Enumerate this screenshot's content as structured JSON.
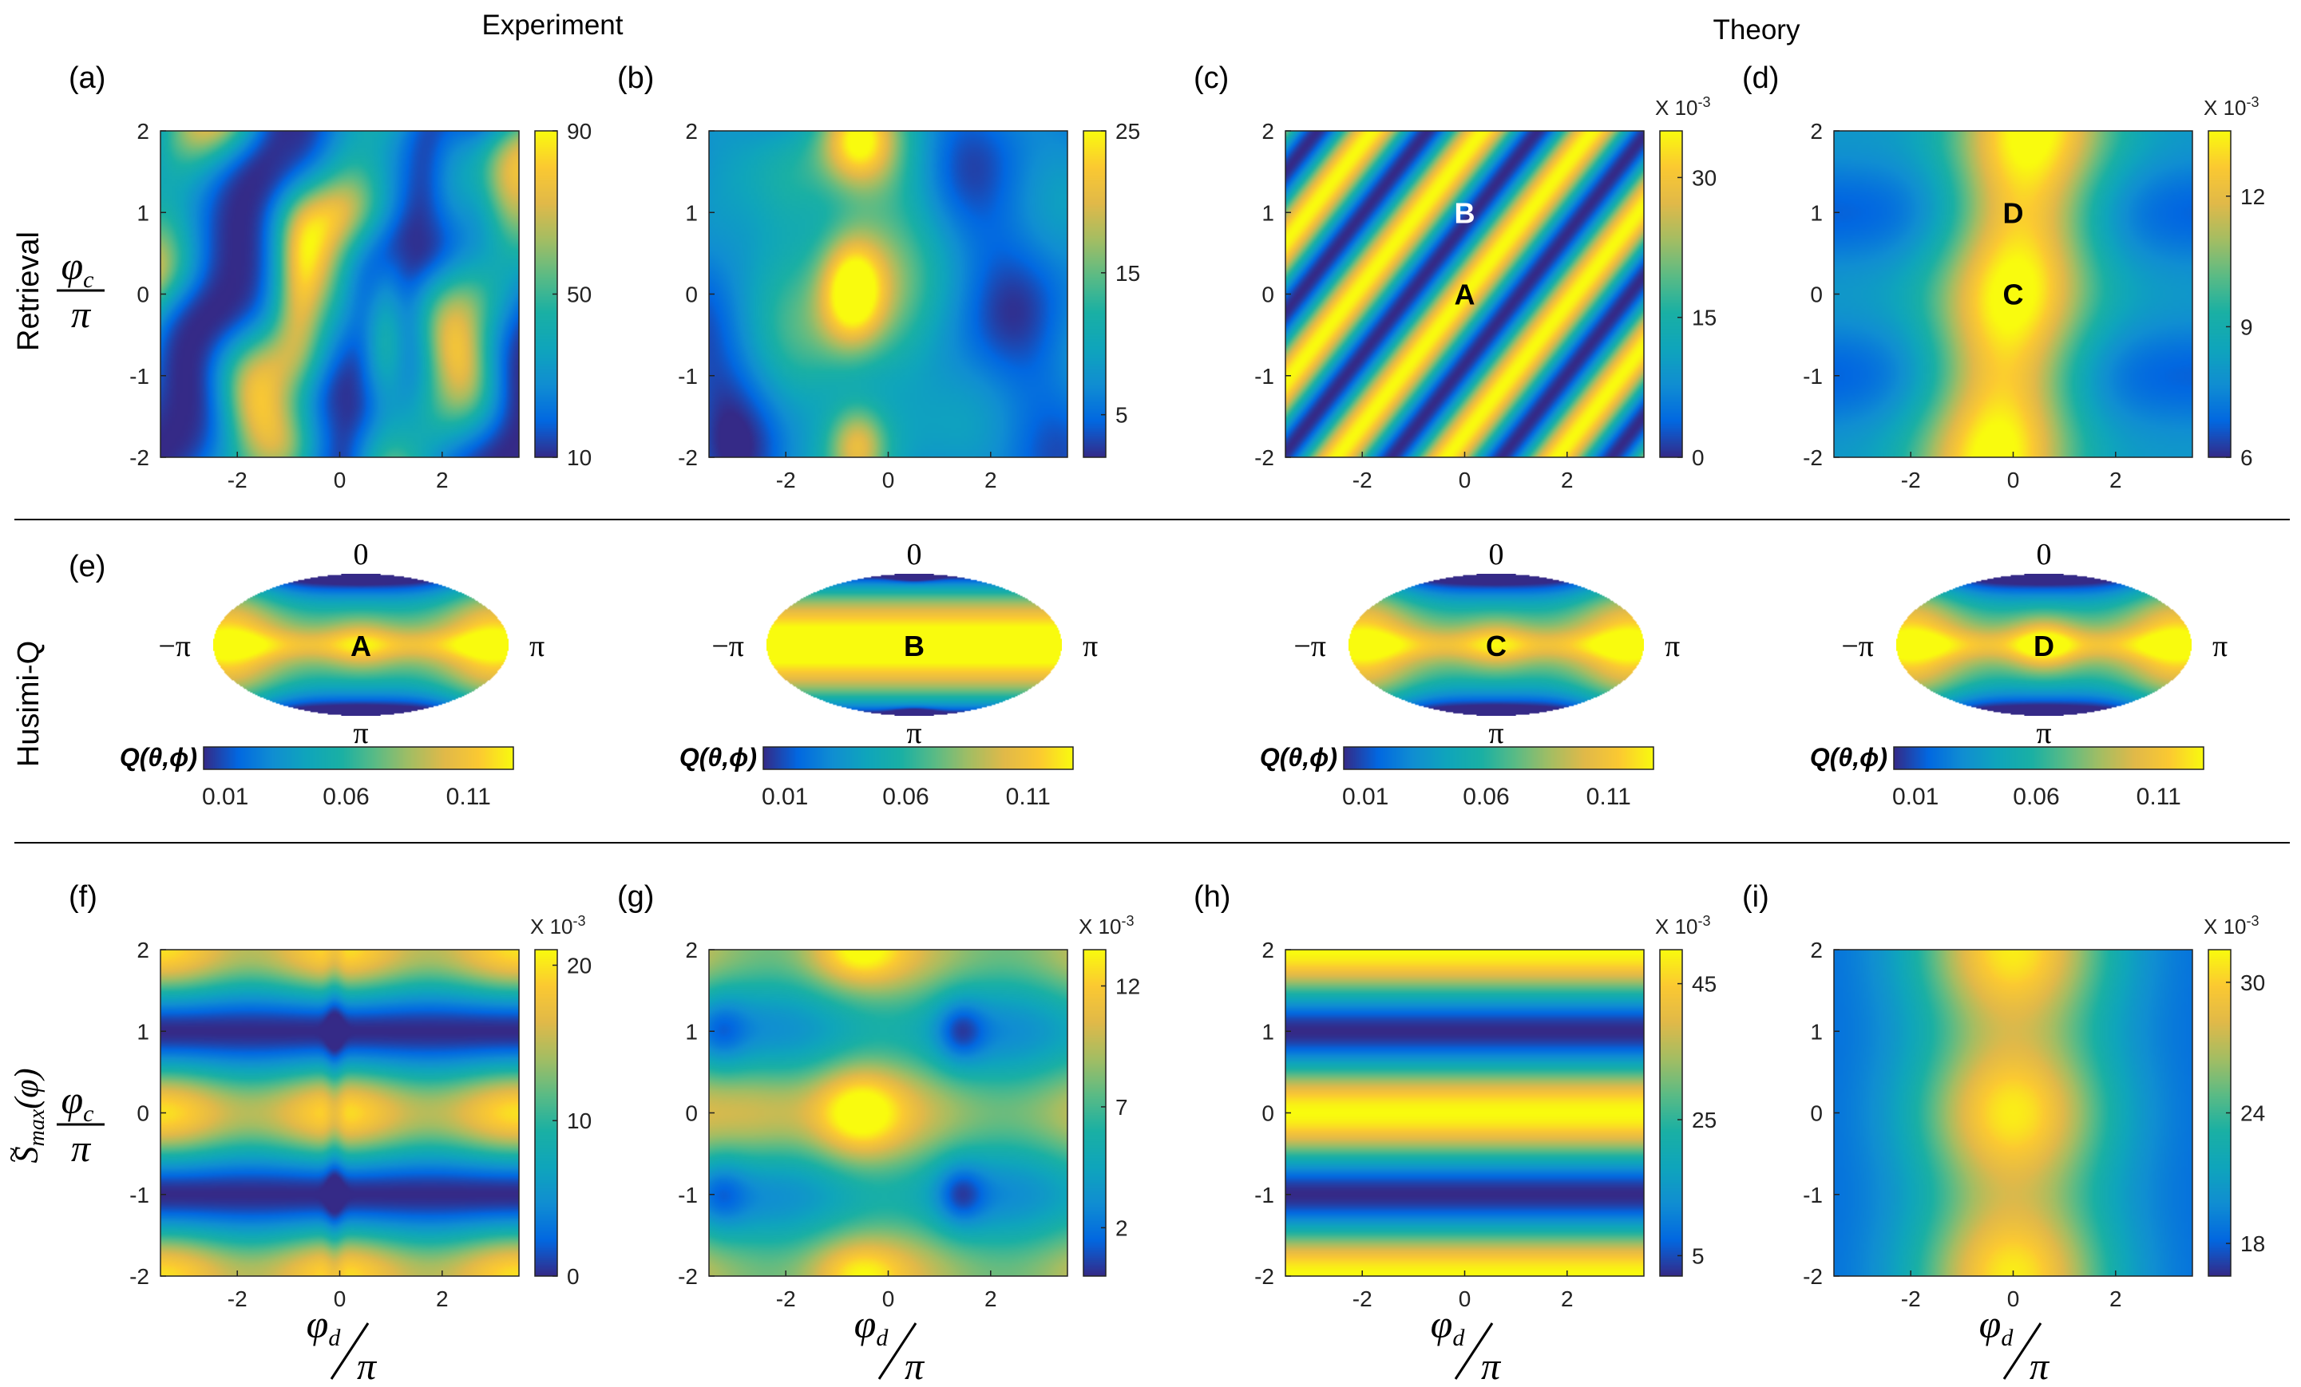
{
  "figure": {
    "col_header_left": "Experiment",
    "col_header_right": "Theory",
    "row_labels": [
      "Retrieval",
      "Husimi-Q"
    ],
    "ylabel_num": "φ",
    "ylabel_sub": "c",
    "ylabel_den": "π",
    "xlabel_num": "φ",
    "xlabel_sub": "d",
    "xlabel_den": "π",
    "smax_base": "S",
    "smax_sub": "max",
    "smax_arg": "(φ)",
    "exp_prefix": "X 10",
    "exp_power": "-3"
  },
  "colors": {
    "parula": [
      "#352a87",
      "#0268e1",
      "#108ed2",
      "#0fa5bc",
      "#1ab0a4",
      "#5bbb85",
      "#a4bd63",
      "#e1b949",
      "#fbc932",
      "#f9fb0e"
    ]
  },
  "chart_data": [
    {
      "id": "a",
      "type": "heatmap",
      "panel_label": "(a)",
      "pattern": "exp_stripes",
      "xlim": [
        -3.5,
        3.5
      ],
      "ylim": [
        -2,
        2
      ],
      "xticks": [
        "-2",
        "0",
        "2"
      ],
      "yticks": [
        "2",
        "1",
        "0",
        "-1",
        "-2"
      ],
      "colorbar": {
        "min": 10,
        "max": 90,
        "ticks": [
          "90",
          "50",
          "10"
        ],
        "exponent": ""
      },
      "annotations": []
    },
    {
      "id": "b",
      "type": "heatmap",
      "panel_label": "(b)",
      "pattern": "exp_blobs",
      "xlim": [
        -3.5,
        3.5
      ],
      "ylim": [
        -2,
        2
      ],
      "xticks": [
        "-2",
        "0",
        "2"
      ],
      "yticks": [
        "2",
        "1",
        "0",
        "-1",
        "-2"
      ],
      "colorbar": {
        "min": 2,
        "max": 25,
        "ticks": [
          "25",
          "15",
          "5"
        ],
        "exponent": ""
      },
      "annotations": []
    },
    {
      "id": "c",
      "type": "heatmap",
      "panel_label": "(c)",
      "pattern": "theory_stripes",
      "xlim": [
        -3.5,
        3.5
      ],
      "ylim": [
        -2,
        2
      ],
      "xticks": [
        "-2",
        "0",
        "2"
      ],
      "yticks": [
        "2",
        "1",
        "0",
        "-1",
        "-2"
      ],
      "colorbar": {
        "min": 0,
        "max": 35,
        "ticks": [
          "30",
          "15",
          "0"
        ],
        "exponent": "X 10-3"
      },
      "annotations": [
        {
          "text": "B",
          "x": 0,
          "y": 1,
          "color": "#ffffff"
        },
        {
          "text": "A",
          "x": 0,
          "y": 0,
          "color": "#000000"
        }
      ]
    },
    {
      "id": "d",
      "type": "heatmap",
      "panel_label": "(d)",
      "pattern": "theory_band",
      "xlim": [
        -3.5,
        3.5
      ],
      "ylim": [
        -2,
        2
      ],
      "xticks": [
        "-2",
        "0",
        "2"
      ],
      "yticks": [
        "2",
        "1",
        "0",
        "-1",
        "-2"
      ],
      "colorbar": {
        "min": 6,
        "max": 13.5,
        "ticks": [
          "12",
          "9",
          "6"
        ],
        "exponent": "X 10-3"
      },
      "annotations": [
        {
          "text": "D",
          "x": 0,
          "y": 1,
          "color": "#000000"
        },
        {
          "text": "C",
          "x": 0,
          "y": 0,
          "color": "#000000"
        }
      ]
    },
    {
      "id": "e1",
      "type": "mollweide-husimi",
      "panel_label": "(e)",
      "state": "A",
      "top": "0",
      "bottom": "π",
      "left": "−π",
      "right": "π",
      "colorbar": {
        "label": "Q(θ,ϕ)",
        "ticks": [
          "0.01",
          "0.06",
          "0.11"
        ]
      }
    },
    {
      "id": "e2",
      "type": "mollweide-husimi",
      "panel_label": "",
      "state": "B",
      "top": "0",
      "bottom": "π",
      "left": "−π",
      "right": "π",
      "colorbar": {
        "label": "Q(θ,ϕ)",
        "ticks": [
          "0.01",
          "0.06",
          "0.11"
        ]
      }
    },
    {
      "id": "e3",
      "type": "mollweide-husimi",
      "panel_label": "",
      "state": "C",
      "top": "0",
      "bottom": "π",
      "left": "−π",
      "right": "π",
      "colorbar": {
        "label": "Q(θ,ϕ)",
        "ticks": [
          "0.01",
          "0.06",
          "0.11"
        ]
      }
    },
    {
      "id": "e4",
      "type": "mollweide-husimi",
      "panel_label": "",
      "state": "D",
      "top": "0",
      "bottom": "π",
      "left": "−π",
      "right": "π",
      "colorbar": {
        "label": "Q(θ,ϕ)",
        "ticks": [
          "0.01",
          "0.06",
          "0.11"
        ]
      }
    },
    {
      "id": "f",
      "type": "heatmap",
      "panel_label": "(f)",
      "pattern": "exp_bands",
      "xlim": [
        -3.5,
        3.5
      ],
      "ylim": [
        -2,
        2
      ],
      "xticks": [
        "-2",
        "0",
        "2"
      ],
      "yticks": [
        "2",
        "1",
        "0",
        "-1",
        "-2"
      ],
      "colorbar": {
        "min": 0,
        "max": 21,
        "ticks": [
          "20",
          "10",
          "0"
        ],
        "exponent": "X 10-3"
      },
      "annotations": []
    },
    {
      "id": "g",
      "type": "heatmap",
      "panel_label": "(g)",
      "pattern": "exp_grid",
      "xlim": [
        -3.5,
        3.5
      ],
      "ylim": [
        -2,
        2
      ],
      "xticks": [
        "-2",
        "0",
        "2"
      ],
      "yticks": [
        "2",
        "1",
        "0",
        "-1",
        "-2"
      ],
      "colorbar": {
        "min": 0,
        "max": 13.5,
        "ticks": [
          "12",
          "7",
          "2"
        ],
        "exponent": "X 10-3"
      },
      "annotations": []
    },
    {
      "id": "h",
      "type": "heatmap",
      "panel_label": "(h)",
      "pattern": "theory_bands",
      "xlim": [
        -3.5,
        3.5
      ],
      "ylim": [
        -2,
        2
      ],
      "xticks": [
        "-2",
        "0",
        "2"
      ],
      "yticks": [
        "2",
        "1",
        "0",
        "-1",
        "-2"
      ],
      "colorbar": {
        "min": 2,
        "max": 50,
        "ticks": [
          "45",
          "25",
          "5"
        ],
        "exponent": "X 10-3"
      },
      "annotations": []
    },
    {
      "id": "i",
      "type": "heatmap",
      "panel_label": "(i)",
      "pattern": "theory_vband",
      "xlim": [
        -3.5,
        3.5
      ],
      "ylim": [
        -2,
        2
      ],
      "xticks": [
        "-2",
        "0",
        "2"
      ],
      "yticks": [
        "2",
        "1",
        "0",
        "-1",
        "-2"
      ],
      "colorbar": {
        "min": 16.5,
        "max": 31.5,
        "ticks": [
          "30",
          "24",
          "18"
        ],
        "exponent": "X 10-3"
      },
      "annotations": []
    }
  ]
}
